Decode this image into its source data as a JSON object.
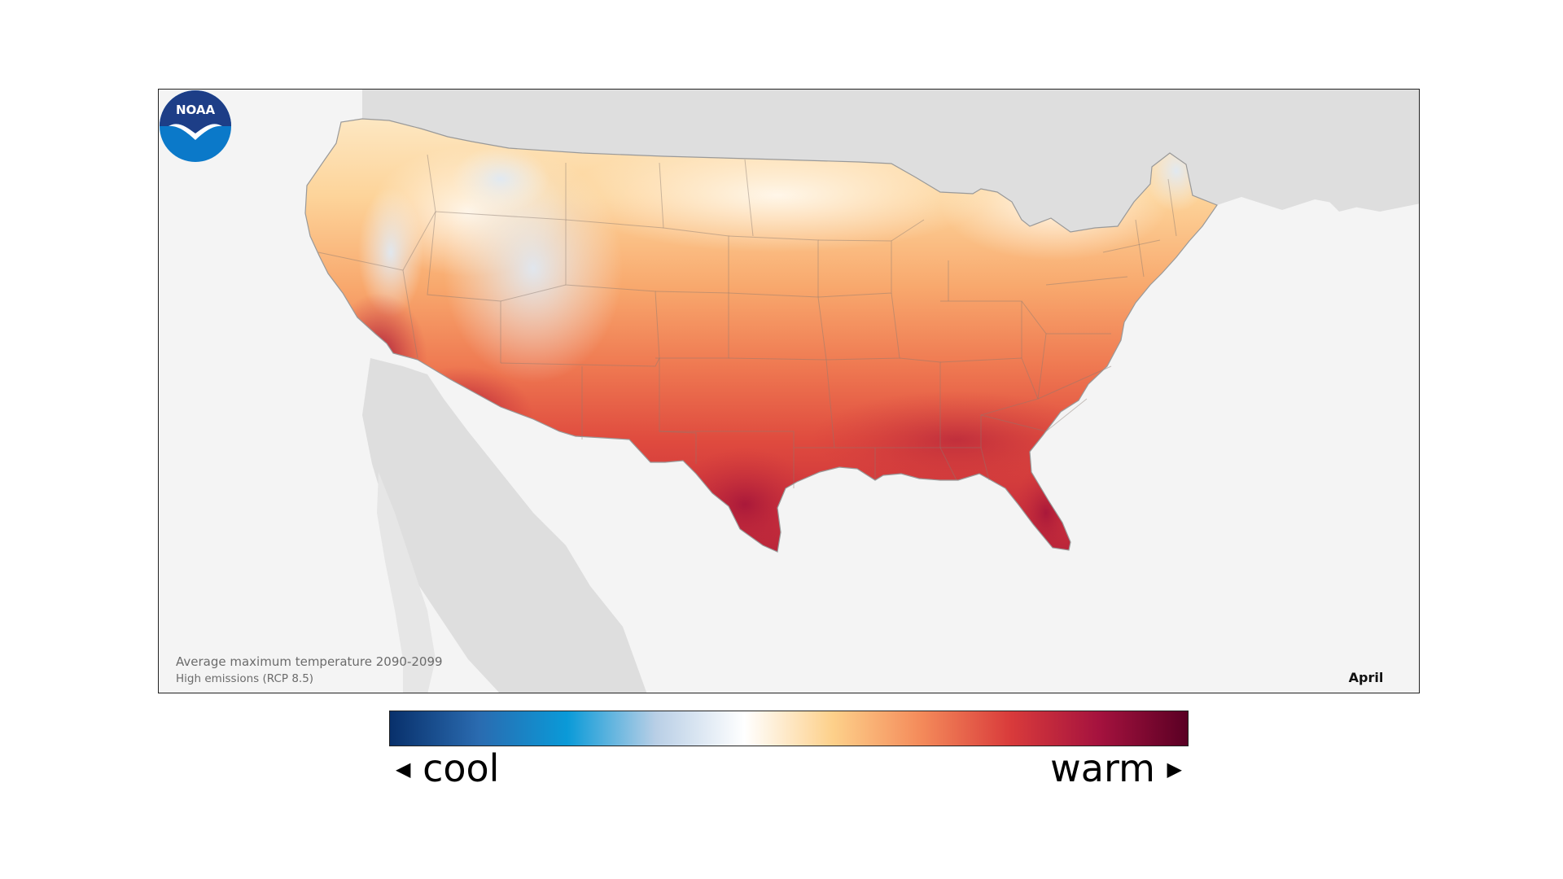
{
  "map": {
    "caption_title": "Average maximum temperature 2090-2099",
    "caption_subtitle": "High emissions (RCP 8.5)",
    "month": "April",
    "logo_text": "NOAA"
  },
  "legend": {
    "low_label": "cool",
    "high_label": "warm",
    "low_arrow": "◀",
    "high_arrow": "▶",
    "gradient_stops": [
      "#08306b",
      "#2a6bb0",
      "#0a9ad8",
      "#b9cfe6",
      "#ffffff",
      "#fdd08a",
      "#f48a5a",
      "#d93b3b",
      "#a5123e",
      "#5a0024"
    ]
  },
  "colors": {
    "land_background": "#dedede",
    "ocean_background": "#f4f4f4",
    "noaa_blue_dark": "#1d3e87",
    "noaa_blue_light": "#0b79c9"
  },
  "icons": {
    "logo": "noaa-logo-icon",
    "left_arrow": "left-triangle-icon",
    "right_arrow": "right-triangle-icon"
  }
}
